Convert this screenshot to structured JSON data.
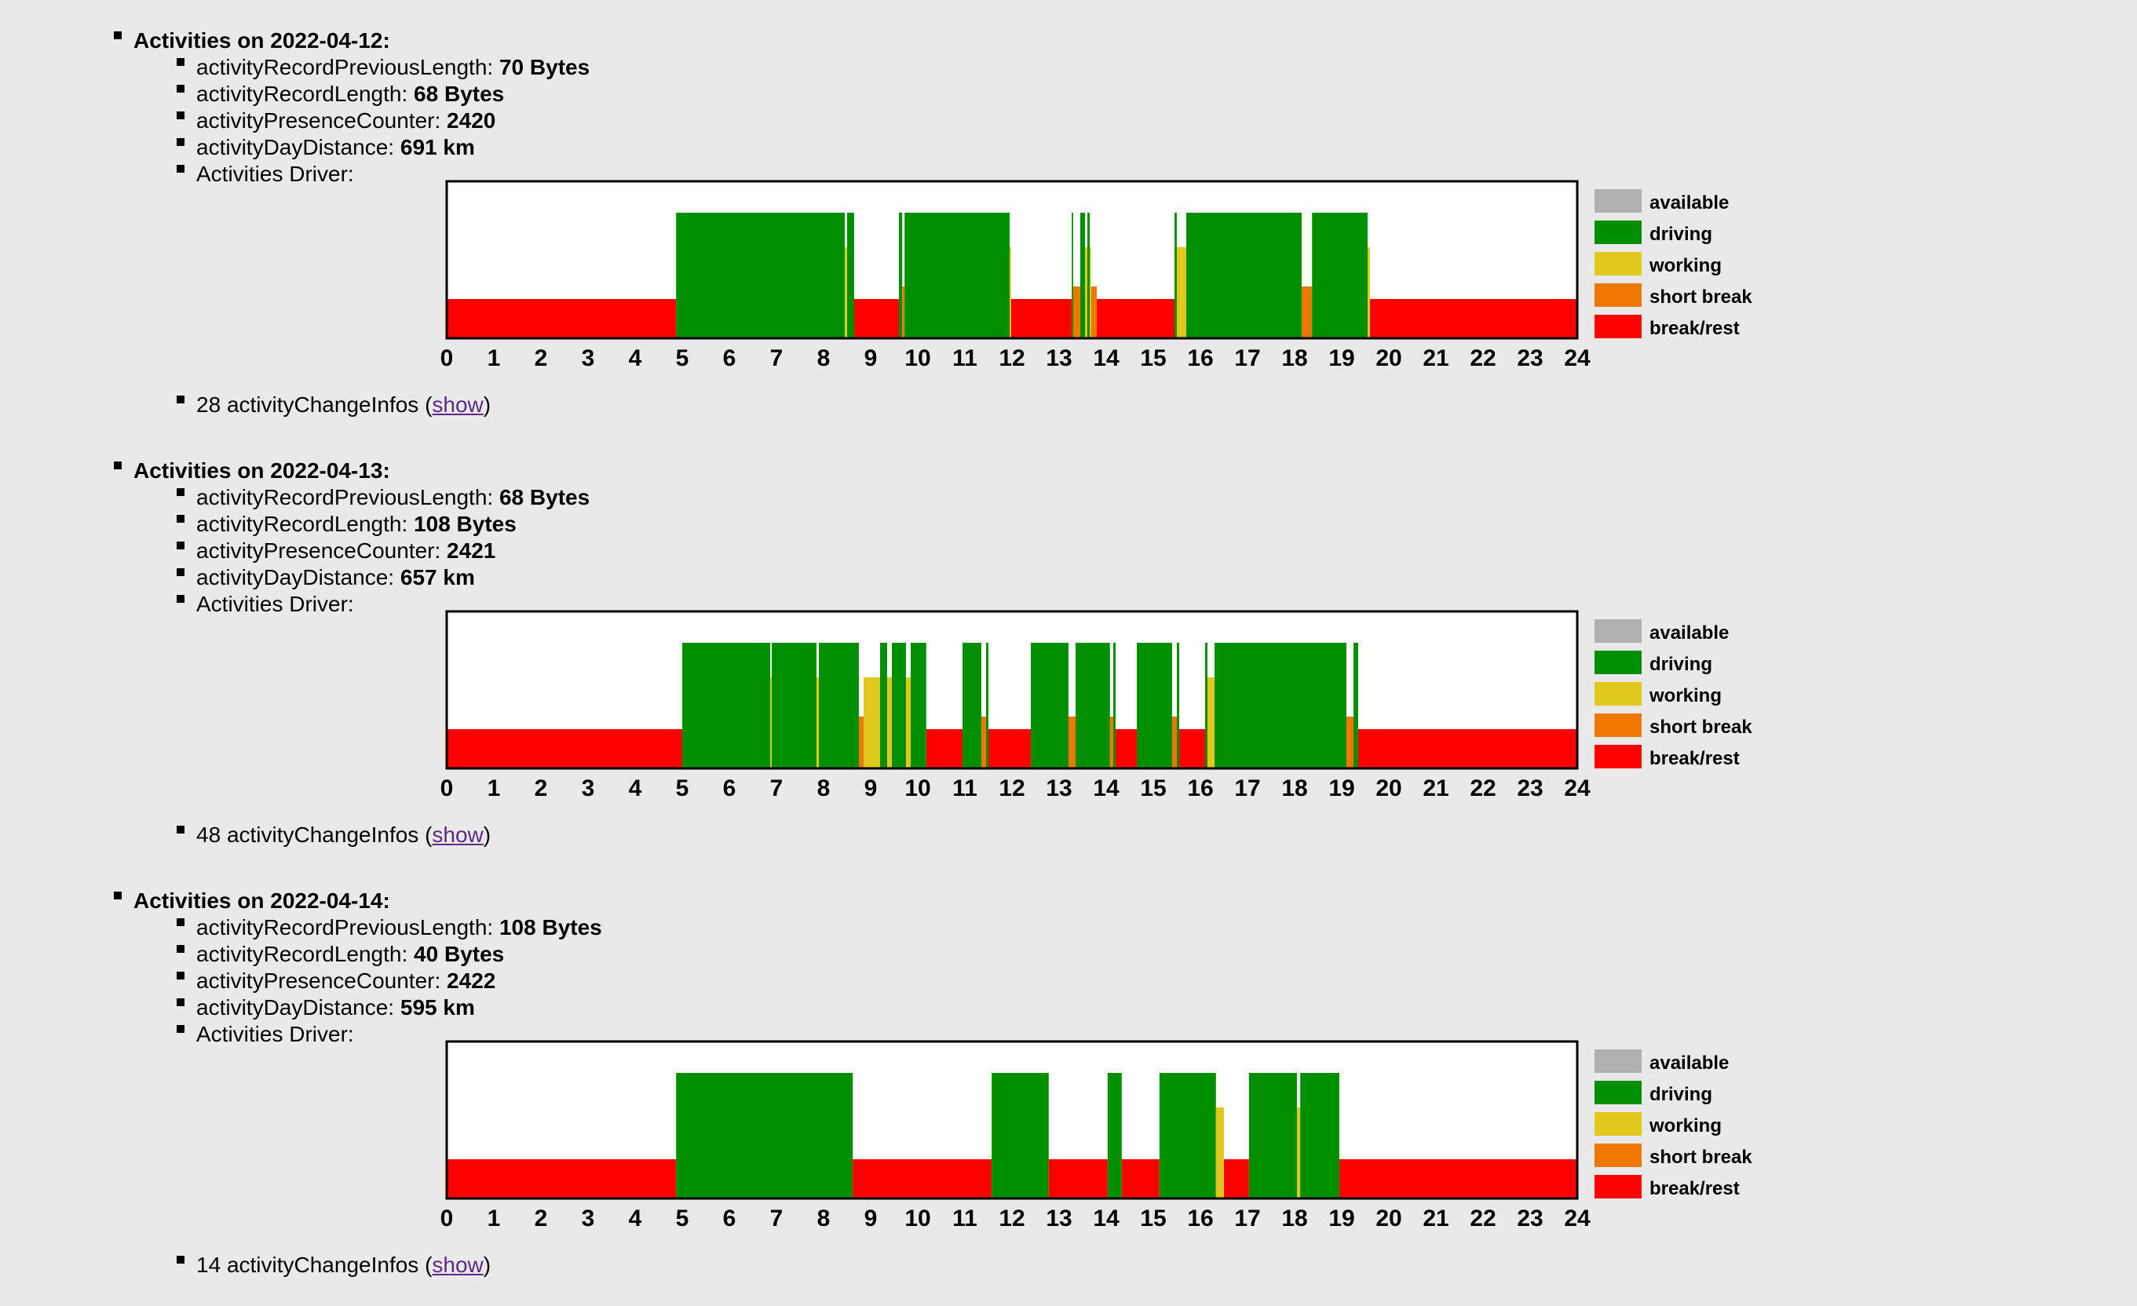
{
  "legend": [
    {
      "label": "available",
      "color": "#b0b0b0"
    },
    {
      "label": "driving",
      "color": "#008f00"
    },
    {
      "label": "working",
      "color": "#e0c81c"
    },
    {
      "label": "short break",
      "color": "#ee7700"
    },
    {
      "label": "break/rest",
      "color": "#ff0000"
    }
  ],
  "labels": {
    "prev_len": "activityRecordPreviousLength:",
    "len": "activityRecordLength:",
    "presence": "activityPresenceCounter:",
    "distance": "activityDayDistance:",
    "driver": "Activities Driver:",
    "change_infos": "activityChangeInfos",
    "show": "show"
  },
  "days": [
    {
      "heading": "Activities on 2022-04-12:",
      "prev_len": "70 Bytes",
      "len": "68 Bytes",
      "presence": "2420",
      "distance": "691 km",
      "change_count": "28",
      "chart_data": {
        "type": "bar",
        "xlabel": "",
        "ylabel": "",
        "xlim": [
          0,
          24
        ],
        "x_ticks": [
          0,
          1,
          2,
          3,
          4,
          5,
          6,
          7,
          8,
          9,
          10,
          11,
          12,
          13,
          14,
          15,
          16,
          17,
          18,
          19,
          20,
          21,
          22,
          23,
          24
        ],
        "segments": [
          {
            "start": 0.0,
            "end": 4.87,
            "activity": "break/rest"
          },
          {
            "start": 4.87,
            "end": 8.45,
            "activity": "driving"
          },
          {
            "start": 8.45,
            "end": 8.5,
            "activity": "working"
          },
          {
            "start": 8.5,
            "end": 8.65,
            "activity": "driving"
          },
          {
            "start": 8.65,
            "end": 9.6,
            "activity": "break/rest"
          },
          {
            "start": 9.6,
            "end": 9.67,
            "activity": "driving"
          },
          {
            "start": 9.67,
            "end": 9.72,
            "activity": "short break"
          },
          {
            "start": 9.72,
            "end": 11.95,
            "activity": "driving"
          },
          {
            "start": 11.95,
            "end": 11.98,
            "activity": "working"
          },
          {
            "start": 11.98,
            "end": 13.27,
            "activity": "break/rest"
          },
          {
            "start": 13.27,
            "end": 13.3,
            "activity": "driving"
          },
          {
            "start": 13.3,
            "end": 13.45,
            "activity": "short break"
          },
          {
            "start": 13.45,
            "end": 13.55,
            "activity": "driving"
          },
          {
            "start": 13.55,
            "end": 13.6,
            "activity": "working"
          },
          {
            "start": 13.6,
            "end": 13.65,
            "activity": "driving"
          },
          {
            "start": 13.65,
            "end": 13.68,
            "activity": "working"
          },
          {
            "start": 13.68,
            "end": 13.8,
            "activity": "short break"
          },
          {
            "start": 13.8,
            "end": 15.45,
            "activity": "break/rest"
          },
          {
            "start": 15.45,
            "end": 15.5,
            "activity": "driving"
          },
          {
            "start": 15.5,
            "end": 15.7,
            "activity": "working"
          },
          {
            "start": 15.7,
            "end": 18.15,
            "activity": "driving"
          },
          {
            "start": 18.15,
            "end": 18.37,
            "activity": "short break"
          },
          {
            "start": 18.37,
            "end": 19.55,
            "activity": "driving"
          },
          {
            "start": 19.55,
            "end": 19.6,
            "activity": "working"
          },
          {
            "start": 19.6,
            "end": 24.0,
            "activity": "break/rest"
          }
        ]
      }
    },
    {
      "heading": "Activities on 2022-04-13:",
      "prev_len": "68 Bytes",
      "len": "108 Bytes",
      "presence": "2421",
      "distance": "657 km",
      "change_count": "48",
      "chart_data": {
        "type": "bar",
        "xlabel": "",
        "ylabel": "",
        "xlim": [
          0,
          24
        ],
        "x_ticks": [
          0,
          1,
          2,
          3,
          4,
          5,
          6,
          7,
          8,
          9,
          10,
          11,
          12,
          13,
          14,
          15,
          16,
          17,
          18,
          19,
          20,
          21,
          22,
          23,
          24
        ],
        "segments": [
          {
            "start": 0.0,
            "end": 5.0,
            "activity": "break/rest"
          },
          {
            "start": 5.0,
            "end": 6.87,
            "activity": "driving"
          },
          {
            "start": 6.87,
            "end": 6.9,
            "activity": "working"
          },
          {
            "start": 6.9,
            "end": 7.85,
            "activity": "driving"
          },
          {
            "start": 7.85,
            "end": 7.9,
            "activity": "working"
          },
          {
            "start": 7.9,
            "end": 8.75,
            "activity": "driving"
          },
          {
            "start": 8.75,
            "end": 8.85,
            "activity": "short break"
          },
          {
            "start": 8.85,
            "end": 9.2,
            "activity": "working"
          },
          {
            "start": 9.2,
            "end": 9.35,
            "activity": "driving"
          },
          {
            "start": 9.35,
            "end": 9.45,
            "activity": "working"
          },
          {
            "start": 9.45,
            "end": 9.75,
            "activity": "driving"
          },
          {
            "start": 9.75,
            "end": 9.85,
            "activity": "working"
          },
          {
            "start": 9.85,
            "end": 10.18,
            "activity": "driving"
          },
          {
            "start": 10.18,
            "end": 10.95,
            "activity": "break/rest"
          },
          {
            "start": 10.95,
            "end": 11.35,
            "activity": "driving"
          },
          {
            "start": 11.35,
            "end": 11.45,
            "activity": "short break"
          },
          {
            "start": 11.45,
            "end": 11.5,
            "activity": "driving"
          },
          {
            "start": 11.5,
            "end": 12.4,
            "activity": "break/rest"
          },
          {
            "start": 12.4,
            "end": 13.2,
            "activity": "driving"
          },
          {
            "start": 13.2,
            "end": 13.35,
            "activity": "short break"
          },
          {
            "start": 13.35,
            "end": 14.08,
            "activity": "driving"
          },
          {
            "start": 14.08,
            "end": 14.15,
            "activity": "short break"
          },
          {
            "start": 14.15,
            "end": 14.2,
            "activity": "driving"
          },
          {
            "start": 14.2,
            "end": 14.65,
            "activity": "break/rest"
          },
          {
            "start": 14.65,
            "end": 15.4,
            "activity": "driving"
          },
          {
            "start": 15.4,
            "end": 15.5,
            "activity": "short break"
          },
          {
            "start": 15.5,
            "end": 15.55,
            "activity": "driving"
          },
          {
            "start": 15.55,
            "end": 16.1,
            "activity": "break/rest"
          },
          {
            "start": 16.1,
            "end": 16.15,
            "activity": "driving"
          },
          {
            "start": 16.15,
            "end": 16.3,
            "activity": "working"
          },
          {
            "start": 16.3,
            "end": 19.1,
            "activity": "driving"
          },
          {
            "start": 19.1,
            "end": 19.25,
            "activity": "short break"
          },
          {
            "start": 19.25,
            "end": 19.35,
            "activity": "driving"
          },
          {
            "start": 19.35,
            "end": 24.0,
            "activity": "break/rest"
          }
        ]
      }
    },
    {
      "heading": "Activities on 2022-04-14:",
      "prev_len": "108 Bytes",
      "len": "40 Bytes",
      "presence": "2422",
      "distance": "595 km",
      "change_count": "14",
      "chart_data": {
        "type": "bar",
        "xlabel": "",
        "ylabel": "",
        "xlim": [
          0,
          24
        ],
        "x_ticks": [
          0,
          1,
          2,
          3,
          4,
          5,
          6,
          7,
          8,
          9,
          10,
          11,
          12,
          13,
          14,
          15,
          16,
          17,
          18,
          19,
          20,
          21,
          22,
          23,
          24
        ],
        "segments": [
          {
            "start": 0.0,
            "end": 4.87,
            "activity": "break/rest"
          },
          {
            "start": 4.87,
            "end": 8.62,
            "activity": "driving"
          },
          {
            "start": 8.62,
            "end": 11.57,
            "activity": "break/rest"
          },
          {
            "start": 11.57,
            "end": 12.78,
            "activity": "driving"
          },
          {
            "start": 12.78,
            "end": 14.03,
            "activity": "break/rest"
          },
          {
            "start": 14.03,
            "end": 14.33,
            "activity": "driving"
          },
          {
            "start": 14.33,
            "end": 15.13,
            "activity": "break/rest"
          },
          {
            "start": 15.13,
            "end": 16.33,
            "activity": "driving"
          },
          {
            "start": 16.33,
            "end": 16.5,
            "activity": "working"
          },
          {
            "start": 16.5,
            "end": 17.03,
            "activity": "break/rest"
          },
          {
            "start": 17.03,
            "end": 18.05,
            "activity": "driving"
          },
          {
            "start": 18.05,
            "end": 18.12,
            "activity": "working"
          },
          {
            "start": 18.12,
            "end": 18.95,
            "activity": "driving"
          },
          {
            "start": 18.95,
            "end": 24.0,
            "activity": "break/rest"
          }
        ]
      }
    }
  ]
}
